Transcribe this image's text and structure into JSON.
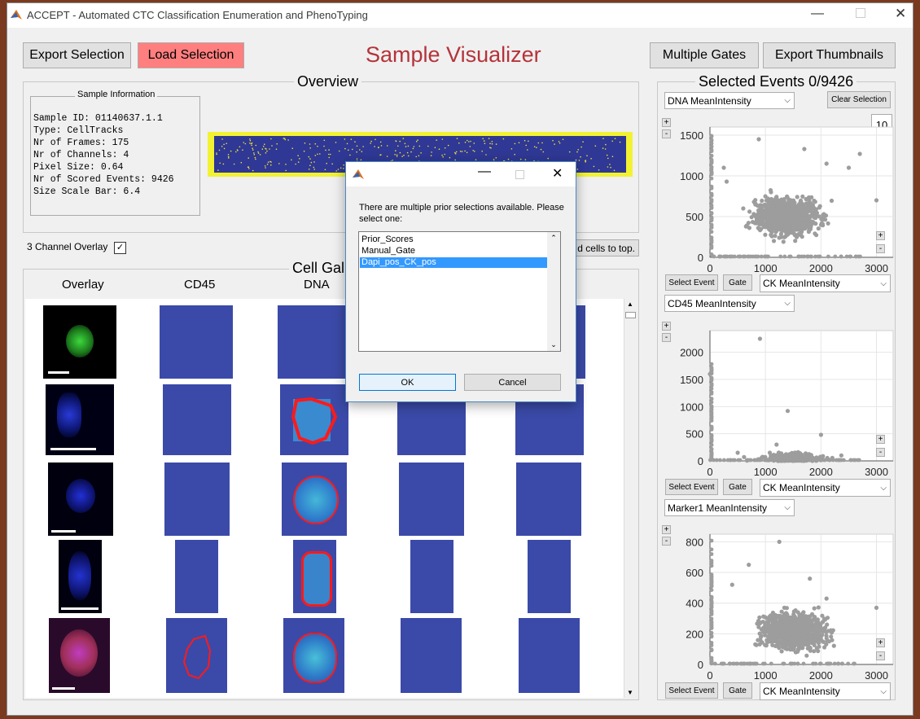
{
  "window": {
    "title": "ACCEPT - Automated CTC Classification Enumeration and PhenoTyping"
  },
  "toolbar": {
    "export_selection": "Export Selection",
    "load_selection": "Load Selection",
    "app_title": "Sample Visualizer",
    "multiple_gates": "Multiple Gates",
    "export_thumbnails": "Export Thumbnails"
  },
  "overview": {
    "title": "Overview",
    "info_title": "Sample Information",
    "info_lines": [
      "Sample ID: 01140637.1.1",
      "Type: CellTracks",
      "Nr of Frames: 175",
      "Nr of Channels: 4",
      "Pixel Size: 0.64",
      "Nr of Scored Events: 9426",
      "Size Scale Bar: 6.4"
    ]
  },
  "overlay_label": "3 Channel Overlay",
  "sort_button": "d cells to top.",
  "gallery": {
    "title": "Cell Gal",
    "columns": [
      "Overlay",
      "CD45",
      "DNA"
    ]
  },
  "selected": {
    "title": "Selected Events 0/9426",
    "clear": "Clear Selection",
    "number_box": "10",
    "select_event": "Select Event",
    "gate": "Gate",
    "plots": [
      {
        "y_dropdown": "DNA MeanIntensity",
        "x_dropdown": "CK MeanIntensity",
        "yticks": [
          "0",
          "500",
          "1000",
          "1500"
        ]
      },
      {
        "y_dropdown": "CD45 MeanIntensity",
        "x_dropdown": "CK MeanIntensity",
        "yticks": [
          "0",
          "500",
          "1000",
          "1500",
          "2000"
        ]
      },
      {
        "y_dropdown": "Marker1 MeanIntensity",
        "x_dropdown": "CK MeanIntensity",
        "yticks": [
          "0",
          "200",
          "400",
          "600",
          "800"
        ]
      }
    ],
    "xticks": [
      "0",
      "1000",
      "2000",
      "3000"
    ]
  },
  "dialog": {
    "message": "There are multiple prior selections available. Please select one:",
    "options": [
      "Prior_Scores",
      "Manual_Gate",
      "Dapi_pos_CK_pos"
    ],
    "selected_index": 2,
    "ok": "OK",
    "cancel": "Cancel"
  },
  "chart_data": [
    {
      "type": "scatter",
      "xlabel": "",
      "ylabel": "",
      "xlim": [
        0,
        3300
      ],
      "ylim": [
        0,
        1600
      ],
      "series": [
        {
          "cluster_center": [
            1400,
            500
          ],
          "points": [
            [
              880,
              1450
            ],
            [
              1700,
              1330
            ],
            [
              2700,
              1270
            ],
            [
              300,
              930
            ],
            [
              250,
              1100
            ],
            [
              2100,
              1150
            ],
            [
              2500,
              1100
            ],
            [
              1100,
              800
            ],
            [
              600,
              600
            ],
            [
              3000,
              700
            ]
          ]
        }
      ]
    },
    {
      "type": "scatter",
      "xlabel": "",
      "ylabel": "",
      "xlim": [
        0,
        3300
      ],
      "ylim": [
        0,
        2400
      ],
      "series": [
        {
          "cluster_center": [
            1500,
            80
          ],
          "points": [
            [
              900,
              2250
            ],
            [
              1400,
              920
            ],
            [
              0,
              1600
            ],
            [
              2000,
              480
            ],
            [
              1200,
              300
            ],
            [
              500,
              150
            ]
          ]
        }
      ]
    },
    {
      "type": "scatter",
      "xlabel": "",
      "ylabel": "",
      "xlim": [
        0,
        3300
      ],
      "ylim": [
        0,
        850
      ],
      "series": [
        {
          "cluster_center": [
            1500,
            220
          ],
          "points": [
            [
              1250,
              800
            ],
            [
              700,
              650
            ],
            [
              2100,
              430
            ],
            [
              3000,
              370
            ],
            [
              400,
              520
            ],
            [
              1800,
              560
            ]
          ]
        }
      ]
    }
  ],
  "colors": {
    "accent_red": "#b5333a",
    "scatter": "#9d9d9d",
    "thumb_blue": "#3b4aa8"
  }
}
